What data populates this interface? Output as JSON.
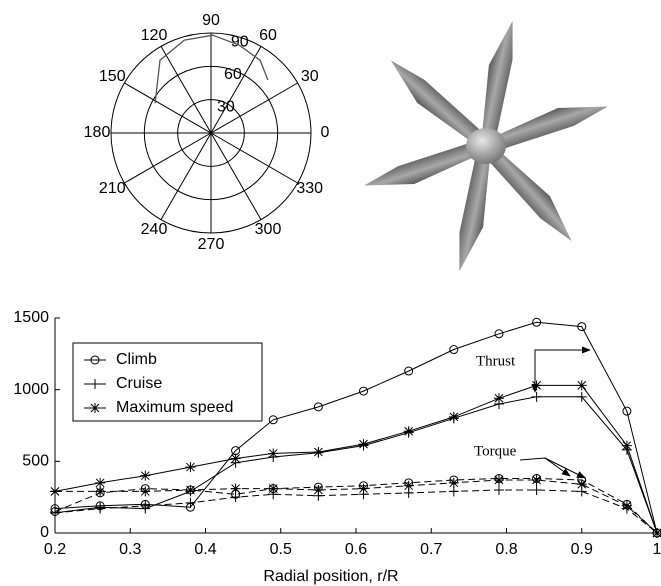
{
  "chart_data": [
    {
      "type": "polar",
      "theta": [
        152,
        125,
        106,
        89,
        72,
        56,
        43
      ],
      "r": [
        57,
        80,
        87,
        88,
        83,
        79,
        70
      ],
      "rlim": [
        0,
        90
      ],
      "rticks": [
        30,
        60,
        90
      ],
      "thetaticks": [
        0,
        30,
        60,
        90,
        120,
        150,
        180,
        210,
        240,
        270,
        300,
        330
      ]
    },
    {
      "type": "line",
      "x": [
        0.2,
        0.26,
        0.32,
        0.38,
        0.44,
        0.49,
        0.55,
        0.61,
        0.67,
        0.73,
        0.79,
        0.84,
        0.9,
        0.96,
        1
      ],
      "xlim": [
        0.2,
        1
      ],
      "xticks": [
        0.2,
        0.3,
        0.4,
        0.5,
        0.6,
        0.7,
        0.8,
        0.9,
        1
      ],
      "ylim": [
        0,
        1500
      ],
      "yticks": [
        0,
        500,
        1000,
        1500
      ],
      "xlabel": "Radial position, r/R",
      "annotations": [
        "Thrust",
        "Torque"
      ],
      "series": [
        {
          "name": "Climb",
          "marker": "circle",
          "color": "#000000",
          "thrust": [
            170,
            190,
            200,
            180,
            575,
            790,
            880,
            990,
            1130,
            1280,
            1390,
            1470,
            1440,
            850,
            0
          ],
          "torque": [
            150,
            280,
            310,
            300,
            270,
            310,
            320,
            330,
            350,
            370,
            380,
            380,
            370,
            200,
            0
          ]
        },
        {
          "name": "Cruise",
          "marker": "plus",
          "color": "#000000",
          "thrust": [
            140,
            180,
            170,
            290,
            490,
            530,
            560,
            610,
            700,
            800,
            900,
            950,
            950,
            580,
            0
          ],
          "torque": [
            140,
            170,
            190,
            210,
            250,
            270,
            260,
            270,
            280,
            290,
            300,
            300,
            290,
            170,
            0
          ]
        },
        {
          "name": "Maximum speed",
          "marker": "star",
          "color": "#000000",
          "thrust": [
            290,
            350,
            400,
            460,
            520,
            555,
            565,
            620,
            710,
            810,
            940,
            1030,
            1030,
            610,
            0
          ],
          "torque": [
            290,
            290,
            290,
            300,
            310,
            310,
            300,
            310,
            330,
            350,
            370,
            370,
            340,
            190,
            0
          ]
        }
      ]
    }
  ]
}
